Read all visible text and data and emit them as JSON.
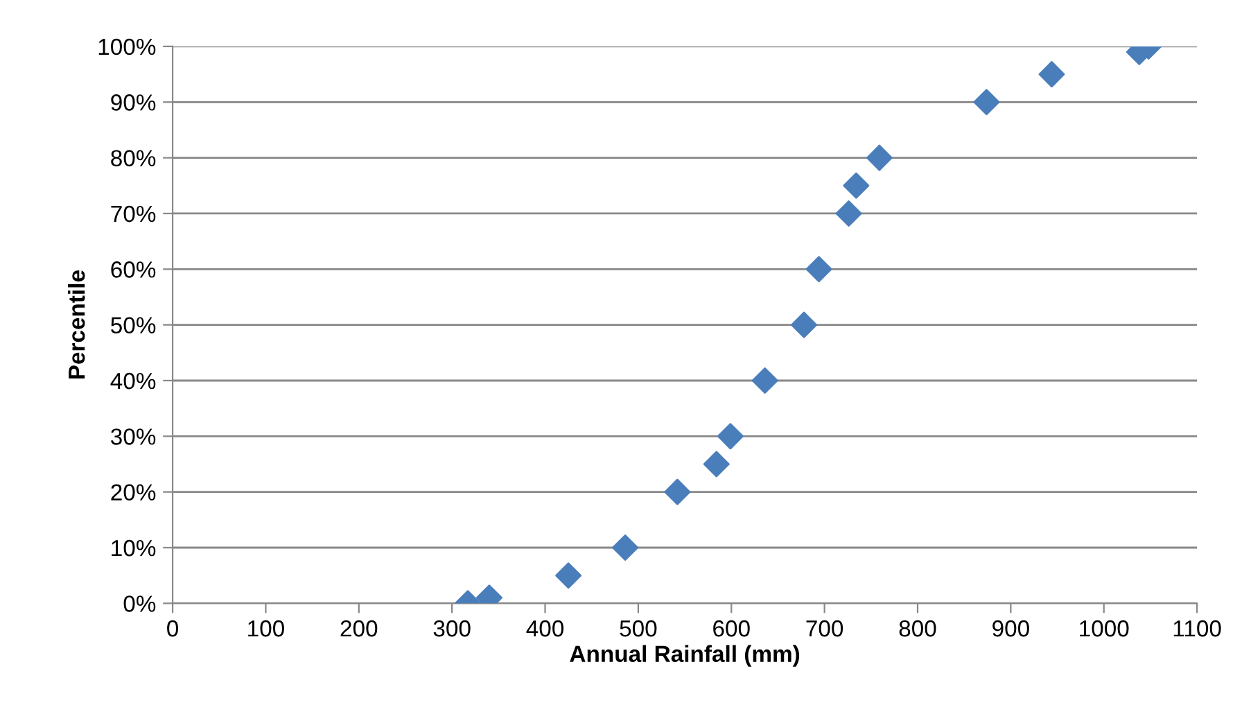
{
  "chart_data": {
    "type": "scatter",
    "xlabel": "Annual Rainfall (mm)",
    "ylabel": "Percentile",
    "x": [
      317,
      340,
      425,
      486,
      542,
      584,
      599,
      636,
      678,
      694,
      726,
      734,
      759,
      874,
      944,
      1038,
      1048
    ],
    "series": [
      {
        "color": "#4a7ebb",
        "values": [
          0,
          1,
          5,
          10,
          20,
          25,
          30,
          40,
          50,
          60,
          70,
          75,
          80,
          90,
          95,
          99,
          100
        ]
      }
    ],
    "marker": "diamond",
    "grid": "y",
    "xlim": [
      0,
      1100
    ],
    "xticks": [
      0,
      100,
      200,
      300,
      400,
      500,
      600,
      700,
      800,
      900,
      1000,
      1100
    ],
    "ylim": [
      0,
      100
    ],
    "yticks": [
      {
        "value": 0,
        "label": "0%"
      },
      {
        "value": 10,
        "label": "10%"
      },
      {
        "value": 20,
        "label": "20%"
      },
      {
        "value": 30,
        "label": "30%"
      },
      {
        "value": 40,
        "label": "40%"
      },
      {
        "value": 50,
        "label": "50%"
      },
      {
        "value": 60,
        "label": "60%"
      },
      {
        "value": 70,
        "label": "70%"
      },
      {
        "value": 80,
        "label": "80%"
      },
      {
        "value": 90,
        "label": "90%"
      },
      {
        "value": 100,
        "label": "100%"
      }
    ]
  }
}
